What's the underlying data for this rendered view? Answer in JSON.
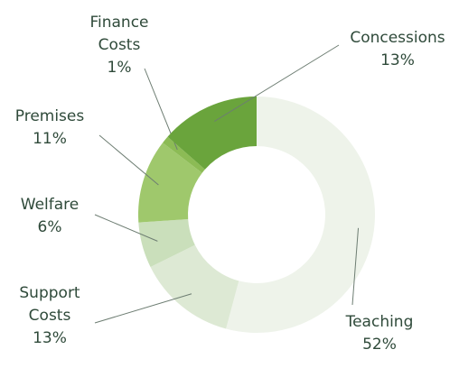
{
  "chart_data": {
    "type": "donut",
    "categories": [
      "Teaching",
      "Support Costs",
      "Welfare",
      "Premises",
      "Finance Costs",
      "Concessions"
    ],
    "values": [
      52,
      13,
      6,
      11,
      1,
      13
    ],
    "value_labels": [
      "52%",
      "13%",
      "6%",
      "11%",
      "1%",
      "13%"
    ],
    "colors": [
      "#eef3ea",
      "#dde9d4",
      "#cadfbb",
      "#9fc86c",
      "#8cbb55",
      "#6aa43c"
    ]
  }
}
